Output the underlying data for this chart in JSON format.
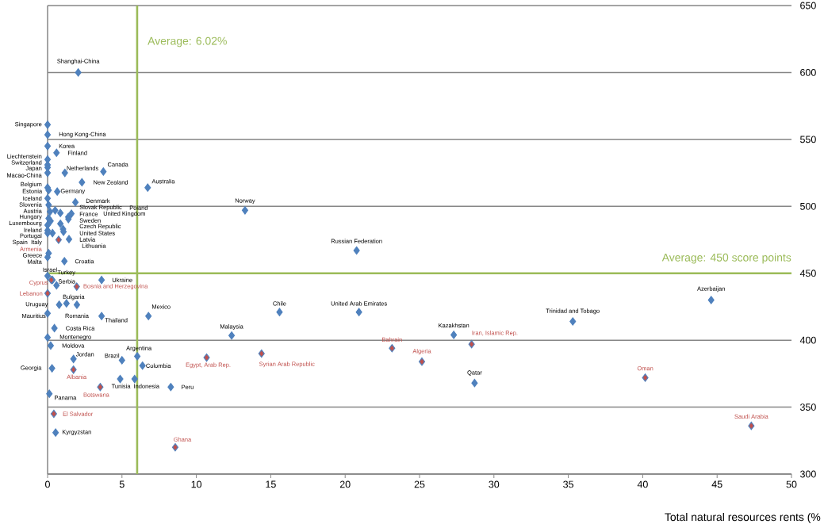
{
  "chart_data": {
    "type": "scatter",
    "xlabel": "Total natural resources rents (%",
    "marker": "diamond",
    "color": "#4f81bd",
    "grid": "y",
    "xlim": [
      0,
      50
    ],
    "ylim": [
      300,
      650
    ],
    "xticks": [
      0,
      5,
      10,
      15,
      20,
      25,
      30,
      35,
      40,
      45,
      50
    ],
    "yticks": [
      300,
      350,
      400,
      450,
      500,
      550,
      600,
      650
    ],
    "x": [
      2.06,
      0,
      0,
      0,
      0.6,
      0,
      0,
      0,
      0,
      1.16,
      3.75,
      2.31,
      6.73,
      0,
      0.07,
      0.65,
      0,
      1.87,
      0.07,
      0.51,
      0.16,
      0.86,
      1.6,
      1.39,
      1.4,
      0.07,
      0.2,
      0.86,
      0,
      1.04,
      0,
      1.07,
      0,
      0.33,
      0.74,
      1.44,
      0.07,
      0,
      1.13,
      0,
      0.33,
      0.25,
      0.6,
      3.63,
      1.96,
      0,
      0.78,
      1.27,
      1.97,
      0,
      3.63,
      6.78,
      0.46,
      0,
      0.21,
      1.74,
      0.3,
      1.74,
      5.0,
      6.03,
      6.38,
      4.88,
      5.85,
      3.54,
      8.28,
      0.12,
      0.42,
      0.54,
      12.37,
      10.69,
      14.38,
      8.58,
      13.27,
      20.77,
      15.59,
      20.93,
      44.6,
      35.3,
      27.3,
      28.5,
      23.15,
      25.16,
      28.7,
      40.17,
      47.3
    ],
    "values": [
      600,
      561,
      553.5,
      545,
      540,
      535,
      531,
      529,
      525,
      525,
      526,
      518,
      514,
      514,
      512,
      511,
      506,
      503,
      501,
      497,
      496,
      495,
      494.5,
      492,
      490.5,
      491,
      489,
      487,
      486,
      483,
      482,
      481,
      480,
      480,
      475,
      475.5,
      465,
      462,
      459,
      448,
      445,
      445,
      441,
      445,
      440,
      435,
      426.5,
      427.5,
      426.5,
      420,
      418,
      418,
      409,
      402,
      396,
      386,
      379,
      378,
      385,
      388,
      381,
      371,
      371,
      365,
      365,
      360,
      345,
      331,
      403.5,
      387,
      390,
      320,
      497,
      467,
      421,
      421,
      430,
      414,
      404,
      397,
      394,
      384,
      368,
      372,
      336
    ],
    "colors": [
      "#4f81bd",
      "#4f81bd",
      "#4f81bd",
      "#4f81bd",
      "#4f81bd",
      "#4f81bd",
      "#4f81bd",
      "#4f81bd",
      "#4f81bd",
      "#4f81bd",
      "#4f81bd",
      "#4f81bd",
      "#4f81bd",
      "#4f81bd",
      "#4f81bd",
      "#4f81bd",
      "#4f81bd",
      "#4f81bd",
      "#4f81bd",
      "#4f81bd",
      "#4f81bd",
      "#4f81bd",
      "#4f81bd",
      "#4f81bd",
      "#4f81bd",
      "#4f81bd",
      "#4f81bd",
      "#4f81bd",
      "#4f81bd",
      "#4f81bd",
      "#4f81bd",
      "#4f81bd",
      "#4f81bd",
      "#4f81bd",
      "#c0504d",
      "#4f81bd",
      "#4f81bd",
      "#4f81bd",
      "#4f81bd",
      "#4f81bd",
      "#4f81bd",
      "#c0504d",
      "#4f81bd",
      "#4f81bd",
      "#c0504d",
      "#c0504d",
      "#4f81bd",
      "#4f81bd",
      "#4f81bd",
      "#4f81bd",
      "#4f81bd",
      "#4f81bd",
      "#4f81bd",
      "#4f81bd",
      "#4f81bd",
      "#4f81bd",
      "#4f81bd",
      "#c0504d",
      "#4f81bd",
      "#4f81bd",
      "#4f81bd",
      "#4f81bd",
      "#4f81bd",
      "#c0504d",
      "#4f81bd",
      "#4f81bd",
      "#c0504d",
      "#4f81bd",
      "#4f81bd",
      "#c0504d",
      "#c0504d",
      "#c0504d",
      "#4f81bd",
      "#4f81bd",
      "#4f81bd",
      "#4f81bd",
      "#4f81bd",
      "#4f81bd",
      "#4f81bd",
      "#c0504d",
      "#c0504d",
      "#c0504d",
      "#4f81bd",
      "#c0504d",
      "#c0504d"
    ],
    "ref_lines": [
      {
        "axis": "x",
        "value": 6.02,
        "label": "Average: 6.02%",
        "color": "#9bbb59"
      },
      {
        "axis": "y",
        "value": 450,
        "label": "Average: 450 score points",
        "color": "#9bbb59"
      }
    ],
    "annotations": [
      {
        "text": "Shanghai-China",
        "x": 2.06,
        "y": 600
      },
      {
        "text": "Singapore",
        "x": 0,
        "y": 561
      },
      {
        "text": "Hong Kong-China",
        "x": 0,
        "y": 553.5
      },
      {
        "text": "Korea",
        "x": 0,
        "y": 545
      },
      {
        "text": "Finland",
        "x": 0.6,
        "y": 540
      },
      {
        "text": "Liechtenstein",
        "x": 0,
        "y": 535
      },
      {
        "text": "Switzerland",
        "x": 0,
        "y": 531
      },
      {
        "text": "Japan",
        "x": 0,
        "y": 529
      },
      {
        "text": "Macao-China",
        "x": 0,
        "y": 525
      },
      {
        "text": "Netherlands",
        "x": 1.16,
        "y": 525
      },
      {
        "text": "Canada",
        "x": 3.75,
        "y": 526
      },
      {
        "text": "New Zealand",
        "x": 2.31,
        "y": 518
      },
      {
        "text": "Australia",
        "x": 6.73,
        "y": 514
      },
      {
        "text": "Belgium",
        "x": 0,
        "y": 514
      },
      {
        "text": "Estonia",
        "x": 0.07,
        "y": 512
      },
      {
        "text": "Germany",
        "x": 0.65,
        "y": 511
      },
      {
        "text": "Iceland",
        "x": 0,
        "y": 506
      },
      {
        "text": "Denmark",
        "x": 1.87,
        "y": 503
      },
      "Slovenia",
      "Slovak Republic",
      "Austria",
      "France",
      "Poland",
      "Sweden",
      "United Kingdom",
      "Hungary",
      "Luxembourg",
      "Czech Republic",
      "Ireland",
      "United States",
      "Portugal",
      "Latvia",
      "Spain",
      "Italy",
      "Armenia",
      {
        "text": "Lithuania",
        "x": 1.44,
        "y": 475.5
      },
      {
        "text": "Greece",
        "x": 0.07,
        "y": 465
      },
      {
        "text": "Malta",
        "x": 0,
        "y": 462
      },
      {
        "text": "Croatia",
        "x": 1.13,
        "y": 459
      },
      {
        "text": "Israel",
        "x": 0,
        "y": 448
      },
      {
        "text": "Turkey",
        "x": 0.33,
        "y": 445
      },
      {
        "text": "Cyprus",
        "x": 0.25,
        "y": 445
      },
      {
        "text": "Serbia",
        "x": 0.6,
        "y": 441
      },
      {
        "text": "Ukraine",
        "x": 3.63,
        "y": 445
      },
      {
        "text": "Bosnia and Herzegovina",
        "x": 1.96,
        "y": 440
      },
      {
        "text": "Lebanon",
        "x": 0,
        "y": 435
      },
      {
        "text": "Uruguay",
        "x": 0.78,
        "y": 426.5
      },
      {
        "text": "Bulgaria",
        "x": 1.27,
        "y": 427.5
      },
      {
        "text": "Romania",
        "x": 1.97,
        "y": 426.5
      },
      {
        "text": "Mauritius",
        "x": 0,
        "y": 420
      },
      {
        "text": "Thailand",
        "x": 3.63,
        "y": 418
      },
      {
        "text": "Mexico",
        "x": 6.78,
        "y": 418
      },
      {
        "text": "Costa Rica",
        "x": 0.46,
        "y": 409
      },
      {
        "text": "Montenegro",
        "x": 0,
        "y": 402
      },
      {
        "text": "Moldova",
        "x": 0.21,
        "y": 396
      },
      {
        "text": "Jordan",
        "x": 1.74,
        "y": 386
      },
      {
        "text": "Georgia",
        "x": 0.3,
        "y": 379
      },
      {
        "text": "Albania",
        "x": 1.74,
        "y": 378
      },
      {
        "text": "Brazil",
        "x": 5.0,
        "y": 385
      },
      {
        "text": "Argentina",
        "x": 6.03,
        "y": 388
      },
      {
        "text": "Colombia",
        "x": 6.38,
        "y": 381
      },
      {
        "text": "Tunisia",
        "x": 4.88,
        "y": 371
      },
      {
        "text": "Indonesia",
        "x": 5.85,
        "y": 371
      },
      {
        "text": "Botswana",
        "x": 3.54,
        "y": 365
      },
      {
        "text": "Peru",
        "x": 8.28,
        "y": 365
      },
      {
        "text": "Panama",
        "x": 0.12,
        "y": 360
      },
      {
        "text": "El Salvador",
        "x": 0.42,
        "y": 345
      },
      {
        "text": "Kyrgyzstan",
        "x": 0.54,
        "y": 331
      },
      {
        "text": "Malaysia",
        "x": 12.37,
        "y": 403.5
      },
      {
        "text": "Egypt, Arab Rep.",
        "x": 10.69,
        "y": 387
      },
      {
        "text": "Syrian Arab Republic",
        "x": 14.38,
        "y": 390
      },
      {
        "text": "Ghana",
        "x": 8.58,
        "y": 320
      },
      {
        "text": "Norway",
        "x": 13.27,
        "y": 497
      },
      {
        "text": "Russian Federation",
        "x": 20.77,
        "y": 467
      },
      {
        "text": "Chile",
        "x": 15.59,
        "y": 421
      },
      {
        "text": "United Arab Emirates",
        "x": 20.93,
        "y": 421
      },
      {
        "text": "Azerbaijan",
        "x": 44.6,
        "y": 430
      },
      {
        "text": "Trinidad and Tobago",
        "x": 35.3,
        "y": 414
      },
      {
        "text": "Kazakhstan",
        "x": 27.3,
        "y": 404
      },
      {
        "text": "Iran, Islamic Rep.",
        "x": 28.5,
        "y": 397
      },
      {
        "text": "Bahrain",
        "x": 23.15,
        "y": 394
      },
      {
        "text": "Algeria",
        "x": 25.16,
        "y": 384
      },
      {
        "text": "Qatar",
        "x": 28.7,
        "y": 368
      },
      {
        "text": "Oman",
        "x": 40.17,
        "y": 372
      },
      {
        "text": "Saudi Arabia",
        "x": 47.3,
        "y": 336
      }
    ]
  }
}
